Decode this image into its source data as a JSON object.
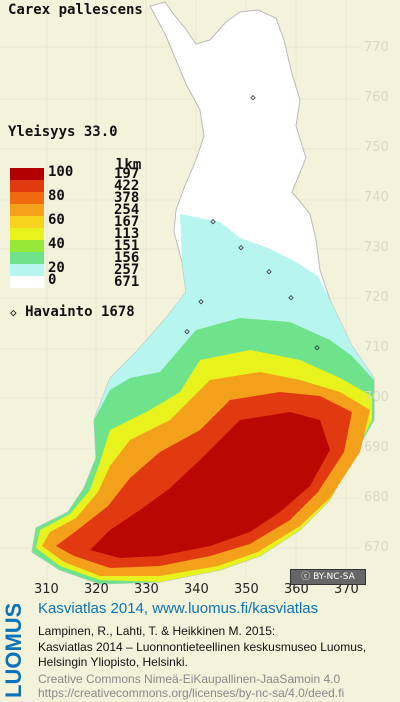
{
  "map": {
    "species": "Carex pallescens",
    "yleisyys_label": "Yleisyys",
    "yleisyys_value": "33.0",
    "havainto_label": "Havainto",
    "havainto_count": "1678",
    "havainto_symbol": "◇",
    "lkm_header": "lkm",
    "legend": [
      {
        "pct": "100",
        "count": "197",
        "color": "#b20000"
      },
      {
        "pct": "",
        "count": "422",
        "color": "#e23a10"
      },
      {
        "pct": "80",
        "count": "378",
        "color": "#f06a10"
      },
      {
        "pct": "",
        "count": "254",
        "color": "#f3a11a"
      },
      {
        "pct": "60",
        "count": "167",
        "color": "#f7d31b"
      },
      {
        "pct": "",
        "count": "113",
        "color": "#e8f21c"
      },
      {
        "pct": "40",
        "count": "151",
        "color": "#98e83a"
      },
      {
        "pct": "",
        "count": "156",
        "color": "#6fe38b"
      },
      {
        "pct": "20",
        "count": "257",
        "color": "#b7f5ef"
      },
      {
        "pct": "0",
        "count": "671",
        "color": "#ffffff"
      }
    ],
    "y_ticks": [
      "770",
      "760",
      "750",
      "740",
      "730",
      "720",
      "710",
      "700",
      "690",
      "680",
      "670"
    ],
    "x_ticks": [
      "310",
      "320",
      "330",
      "340",
      "350",
      "360",
      "370"
    ],
    "license_badge": "BY-NC-SA"
  },
  "footer": {
    "brand": "LUOMUS",
    "headline": "Kasviatlas 2014, www.luomus.fi/kasviatlas",
    "citation_1": "Lampinen, R., Lahti, T. & Heikkinen M. 2015:",
    "citation_2": "Kasviatlas 2014 – Luonnontieteellinen keskusmuseo Luomus,",
    "citation_3": "Helsingin Yliopisto, Helsinki.",
    "license_1": "Creative Commons Nimeä-EiKaupallinen-JaaSamoin 4.0",
    "license_2": "https://creativecommons.org/licenses/by-nc-sa/4.0/deed.fi"
  }
}
